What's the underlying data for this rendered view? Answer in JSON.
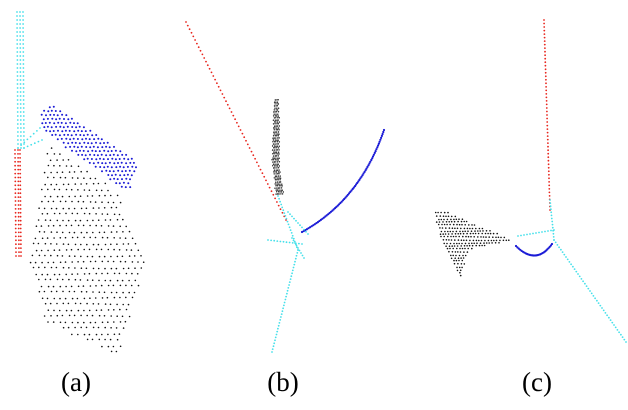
{
  "panels": [
    {
      "id": "a",
      "caption": "(a)"
    },
    {
      "id": "b",
      "caption": "(b)"
    },
    {
      "id": "c",
      "caption": "(c)"
    }
  ],
  "colors": {
    "red": "#e8261e",
    "cyan": "#45e0ea",
    "blue": "#1a1ad6",
    "black": "#111111",
    "background": "#ffffff"
  }
}
